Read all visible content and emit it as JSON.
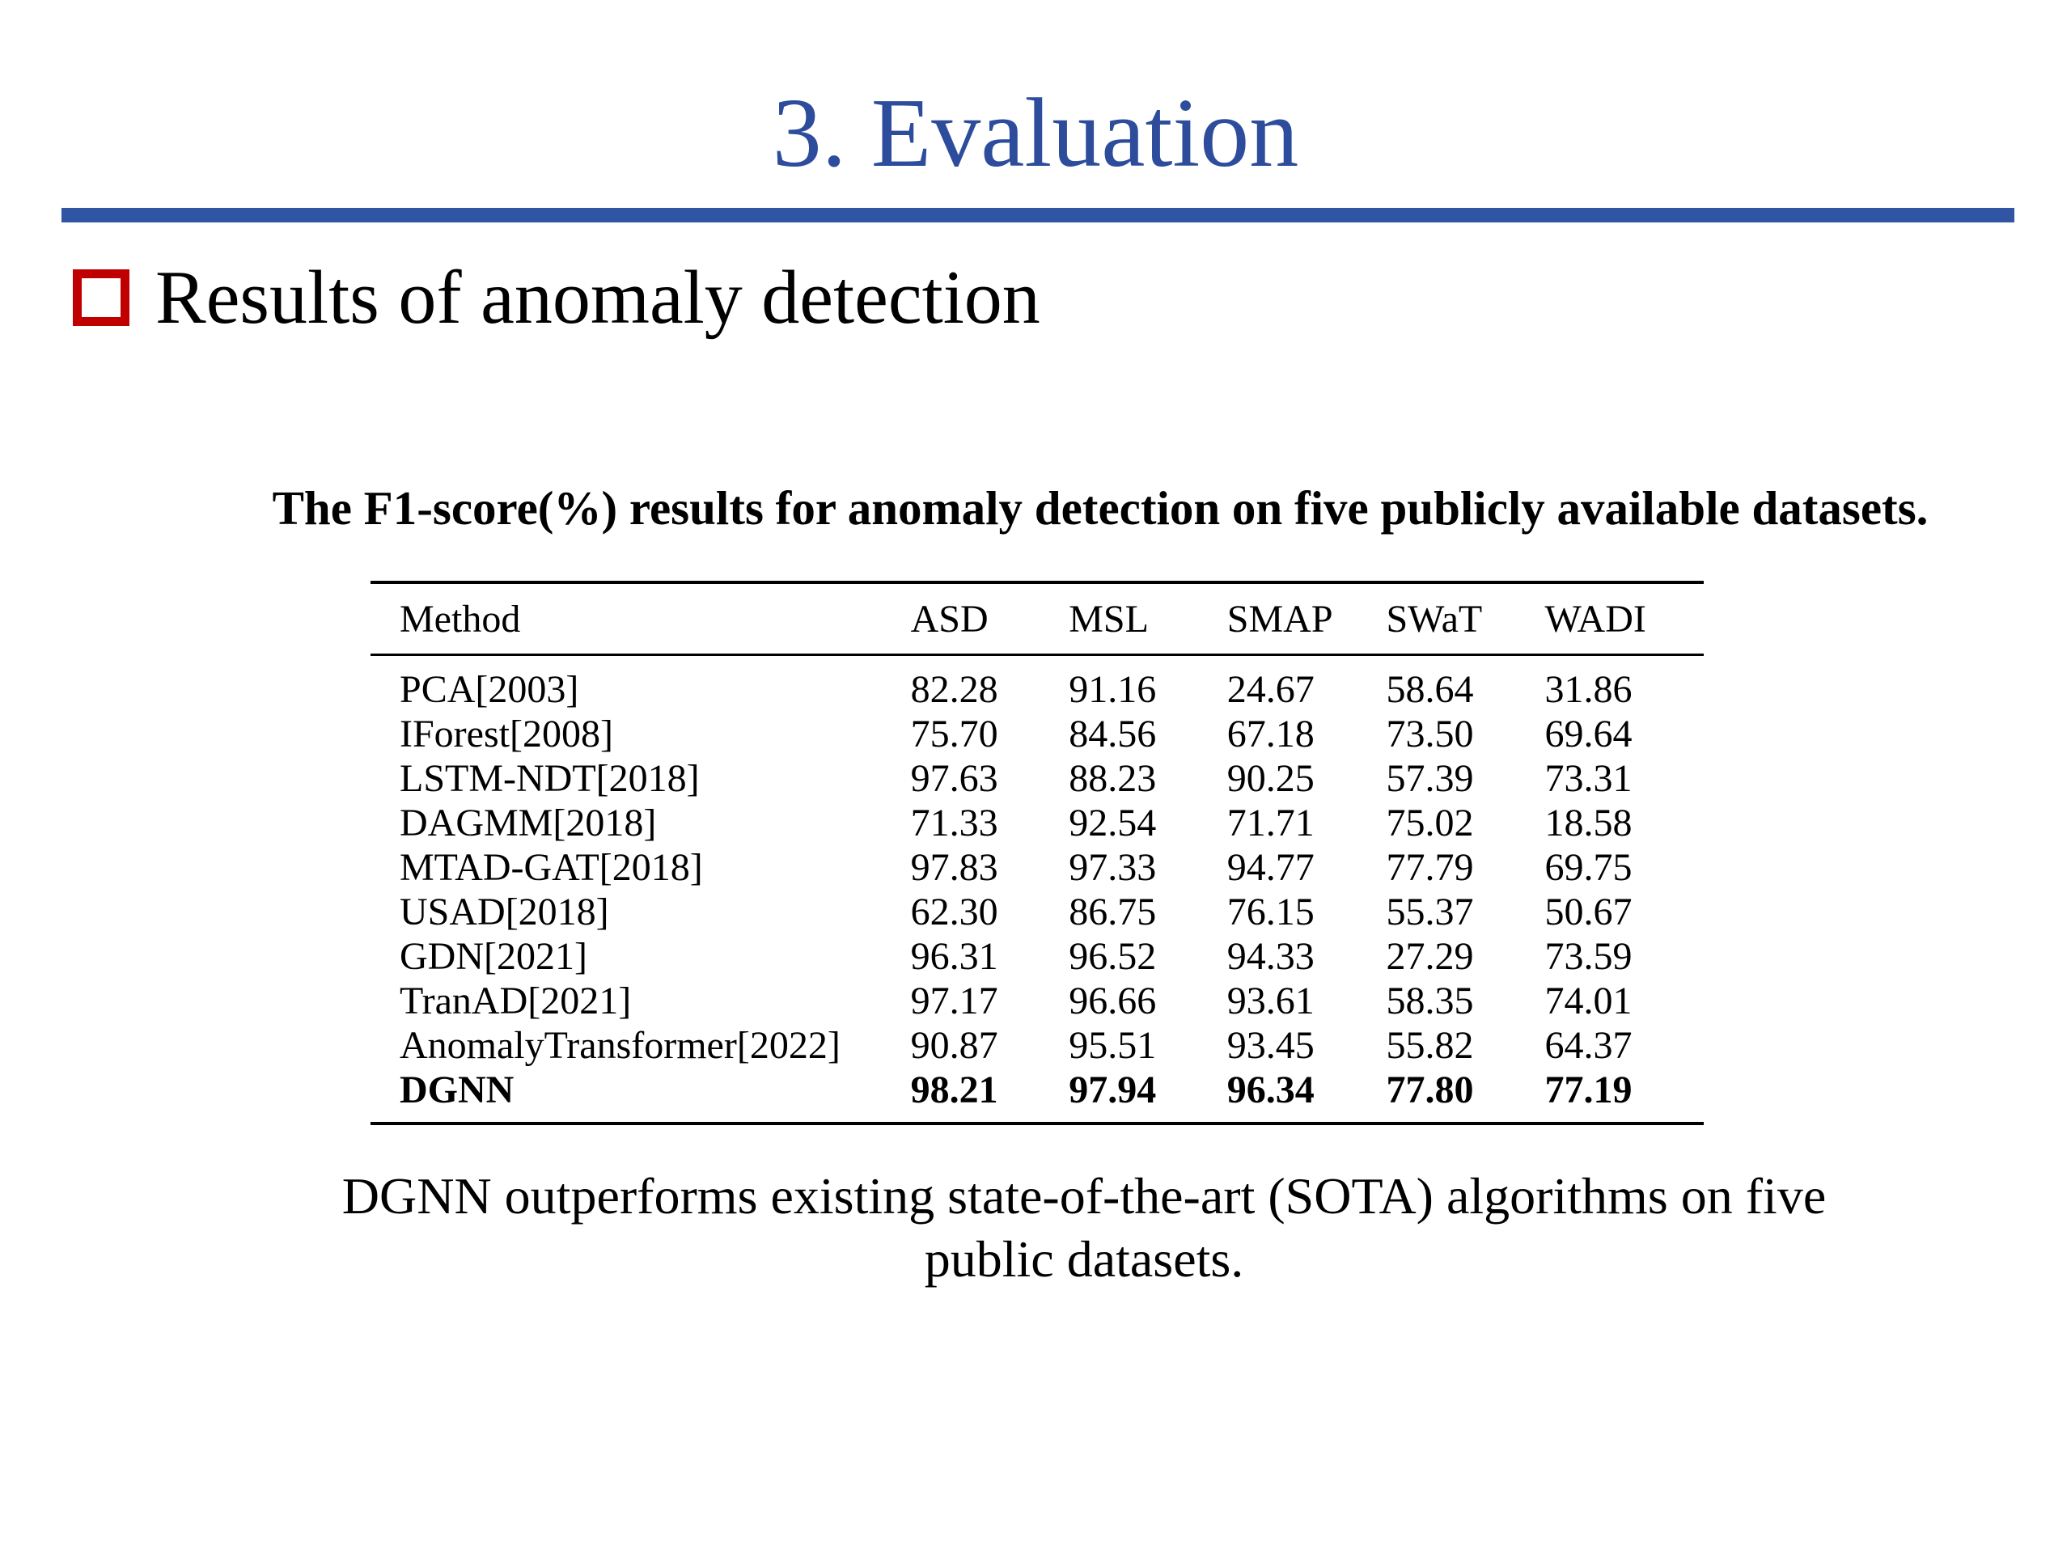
{
  "slide": {
    "title": "3. Evaluation",
    "section_heading": "Results of anomaly detection",
    "accent_color": "#2f55a4",
    "bullet_color": "#c00000"
  },
  "table": {
    "caption": "The F1-score(%) results for anomaly detection on five publicly available datasets.",
    "columns": [
      "Method",
      "ASD",
      "MSL",
      "SMAP",
      "SWaT",
      "WADI"
    ],
    "rows": [
      {
        "method": "PCA[2003]",
        "values": [
          "82.28",
          "91.16",
          "24.67",
          "58.64",
          "31.86"
        ]
      },
      {
        "method": "IForest[2008]",
        "values": [
          "75.70",
          "84.56",
          "67.18",
          "73.50",
          "69.64"
        ]
      },
      {
        "method": "LSTM-NDT[2018]",
        "values": [
          "97.63",
          "88.23",
          "90.25",
          "57.39",
          "73.31"
        ]
      },
      {
        "method": "DAGMM[2018]",
        "values": [
          "71.33",
          "92.54",
          "71.71",
          "75.02",
          "18.58"
        ]
      },
      {
        "method": "MTAD-GAT[2018]",
        "values": [
          "97.83",
          "97.33",
          "94.77",
          "77.79",
          "69.75"
        ]
      },
      {
        "method": "USAD[2018]",
        "values": [
          "62.30",
          "86.75",
          "76.15",
          "55.37",
          "50.67"
        ]
      },
      {
        "method": "GDN[2021]",
        "values": [
          "96.31",
          "96.52",
          "94.33",
          "27.29",
          "73.59"
        ]
      },
      {
        "method": "TranAD[2021]",
        "values": [
          "97.17",
          "96.66",
          "93.61",
          "58.35",
          "74.01"
        ]
      },
      {
        "method": "AnomalyTransformer[2022]",
        "values": [
          "90.87",
          "95.51",
          "93.45",
          "55.82",
          "64.37"
        ]
      },
      {
        "method": "DGNN",
        "values": [
          "98.21",
          "97.94",
          "96.34",
          "77.80",
          "77.19"
        ],
        "bold": true
      }
    ]
  },
  "summary": {
    "line1": "DGNN outperforms existing state-of-the-art (SOTA) algorithms on five",
    "line2": "public datasets."
  }
}
